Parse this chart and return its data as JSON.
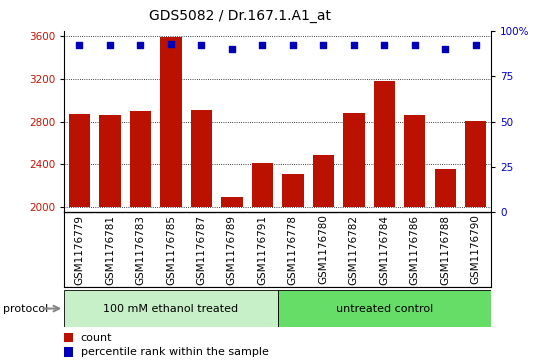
{
  "title": "GDS5082 / Dr.167.1.A1_at",
  "samples": [
    "GSM1176779",
    "GSM1176781",
    "GSM1176783",
    "GSM1176785",
    "GSM1176787",
    "GSM1176789",
    "GSM1176791",
    "GSM1176778",
    "GSM1176780",
    "GSM1176782",
    "GSM1176784",
    "GSM1176786",
    "GSM1176788",
    "GSM1176790"
  ],
  "counts": [
    2870,
    2860,
    2900,
    3590,
    2910,
    2090,
    2410,
    2310,
    2490,
    2880,
    3180,
    2860,
    2360,
    2810
  ],
  "percentiles": [
    92,
    92,
    92,
    93,
    92,
    90,
    92,
    92,
    92,
    92,
    92,
    92,
    90,
    92
  ],
  "group_labels": [
    "100 mM ethanol treated",
    "untreated control"
  ],
  "group_color_light": "#C8F0C8",
  "group_color_dark": "#66DD66",
  "bar_color": "#BB1100",
  "dot_color": "#0000BB",
  "ylim_left": [
    1950,
    3650
  ],
  "ylim_right": [
    0,
    100
  ],
  "yticks_left": [
    2000,
    2400,
    2800,
    3200,
    3600
  ],
  "yticks_right": [
    0,
    25,
    50,
    75,
    100
  ],
  "yticklabels_right": [
    "0",
    "25",
    "50",
    "75",
    "100%"
  ],
  "left_tick_color": "#CC1100",
  "right_tick_color": "#0000CC",
  "bar_width": 0.7,
  "title_fontsize": 10,
  "tick_fontsize": 7.5,
  "label_fontsize": 8,
  "legend_fontsize": 8,
  "n_treated": 7,
  "n_untreated": 7
}
